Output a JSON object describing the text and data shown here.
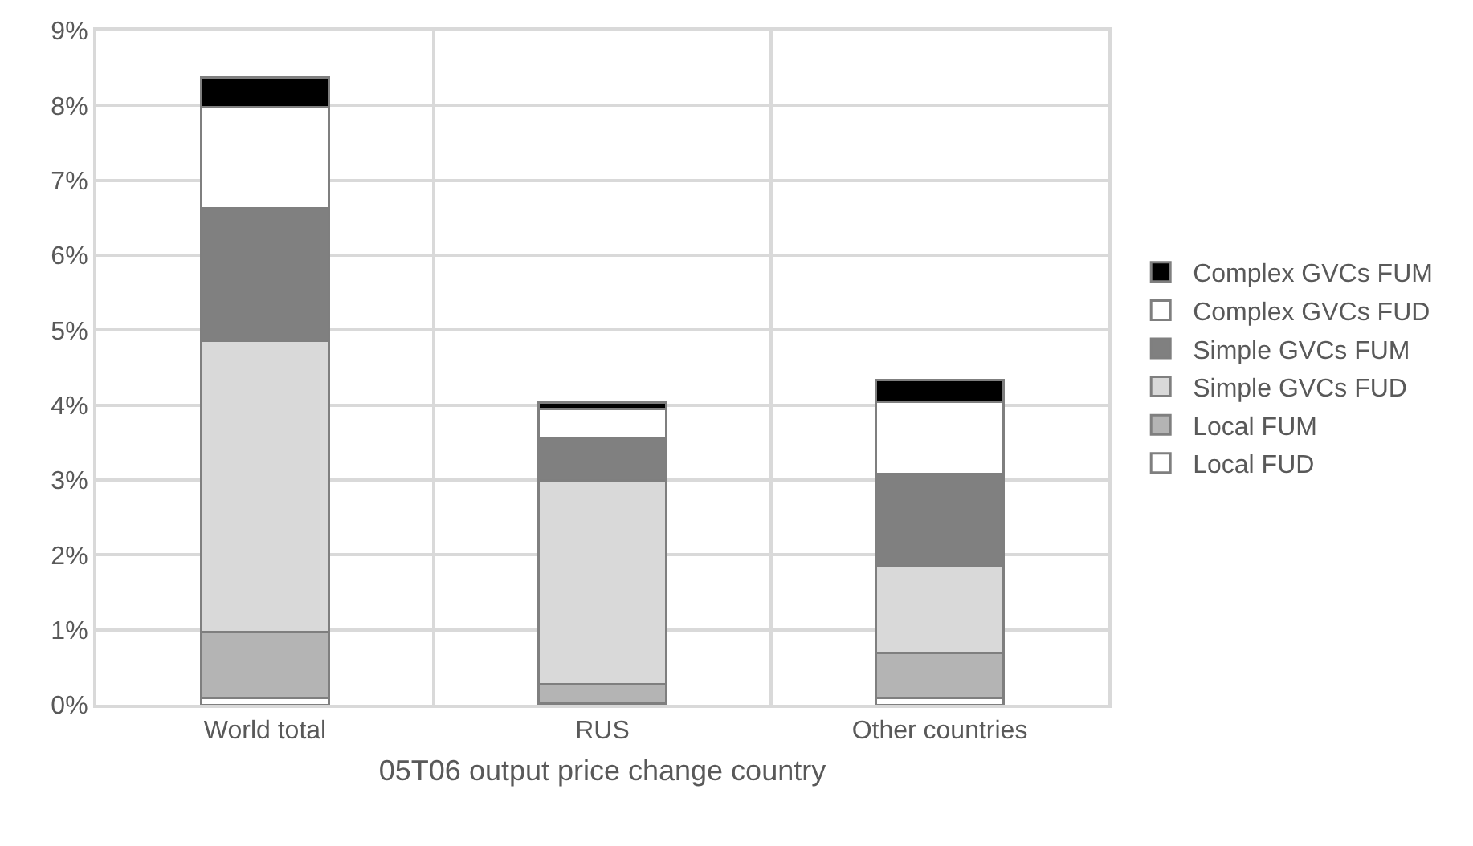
{
  "chart_data": {
    "type": "bar",
    "stacked": true,
    "xlabel": "05T06 output price change country",
    "categories": [
      "World total",
      "RUS",
      "Other countries"
    ],
    "series": [
      {
        "name": "Local FUD",
        "color": "#ffffff",
        "values": [
          0.09,
          0.02,
          0.09
        ]
      },
      {
        "name": "Local FUM",
        "color": "#b4b4b4",
        "values": [
          0.88,
          0.25,
          0.6
        ]
      },
      {
        "name": "Simple GVCs FUD",
        "color": "#d9d9d9",
        "values": [
          3.89,
          2.72,
          1.16
        ]
      },
      {
        "name": "Simple GVCs FUM",
        "color": "#808080",
        "values": [
          1.77,
          0.57,
          1.23
        ]
      },
      {
        "name": "Complex GVCs FUD",
        "color": "#ffffff",
        "values": [
          1.35,
          0.39,
          0.96
        ]
      },
      {
        "name": "Complex GVCs FUM",
        "color": "#000000",
        "values": [
          0.39,
          0.08,
          0.29
        ]
      }
    ],
    "ylim": [
      0,
      9
    ],
    "yticks": [
      {
        "value": 0,
        "label": "0%"
      },
      {
        "value": 1,
        "label": "1%"
      },
      {
        "value": 2,
        "label": "2%"
      },
      {
        "value": 3,
        "label": "3%"
      },
      {
        "value": 4,
        "label": "4%"
      },
      {
        "value": 5,
        "label": "5%"
      },
      {
        "value": 6,
        "label": "6%"
      },
      {
        "value": 7,
        "label": "7%"
      },
      {
        "value": 8,
        "label": "8%"
      },
      {
        "value": 9,
        "label": "9%"
      }
    ],
    "grid": true,
    "legend": "right"
  }
}
